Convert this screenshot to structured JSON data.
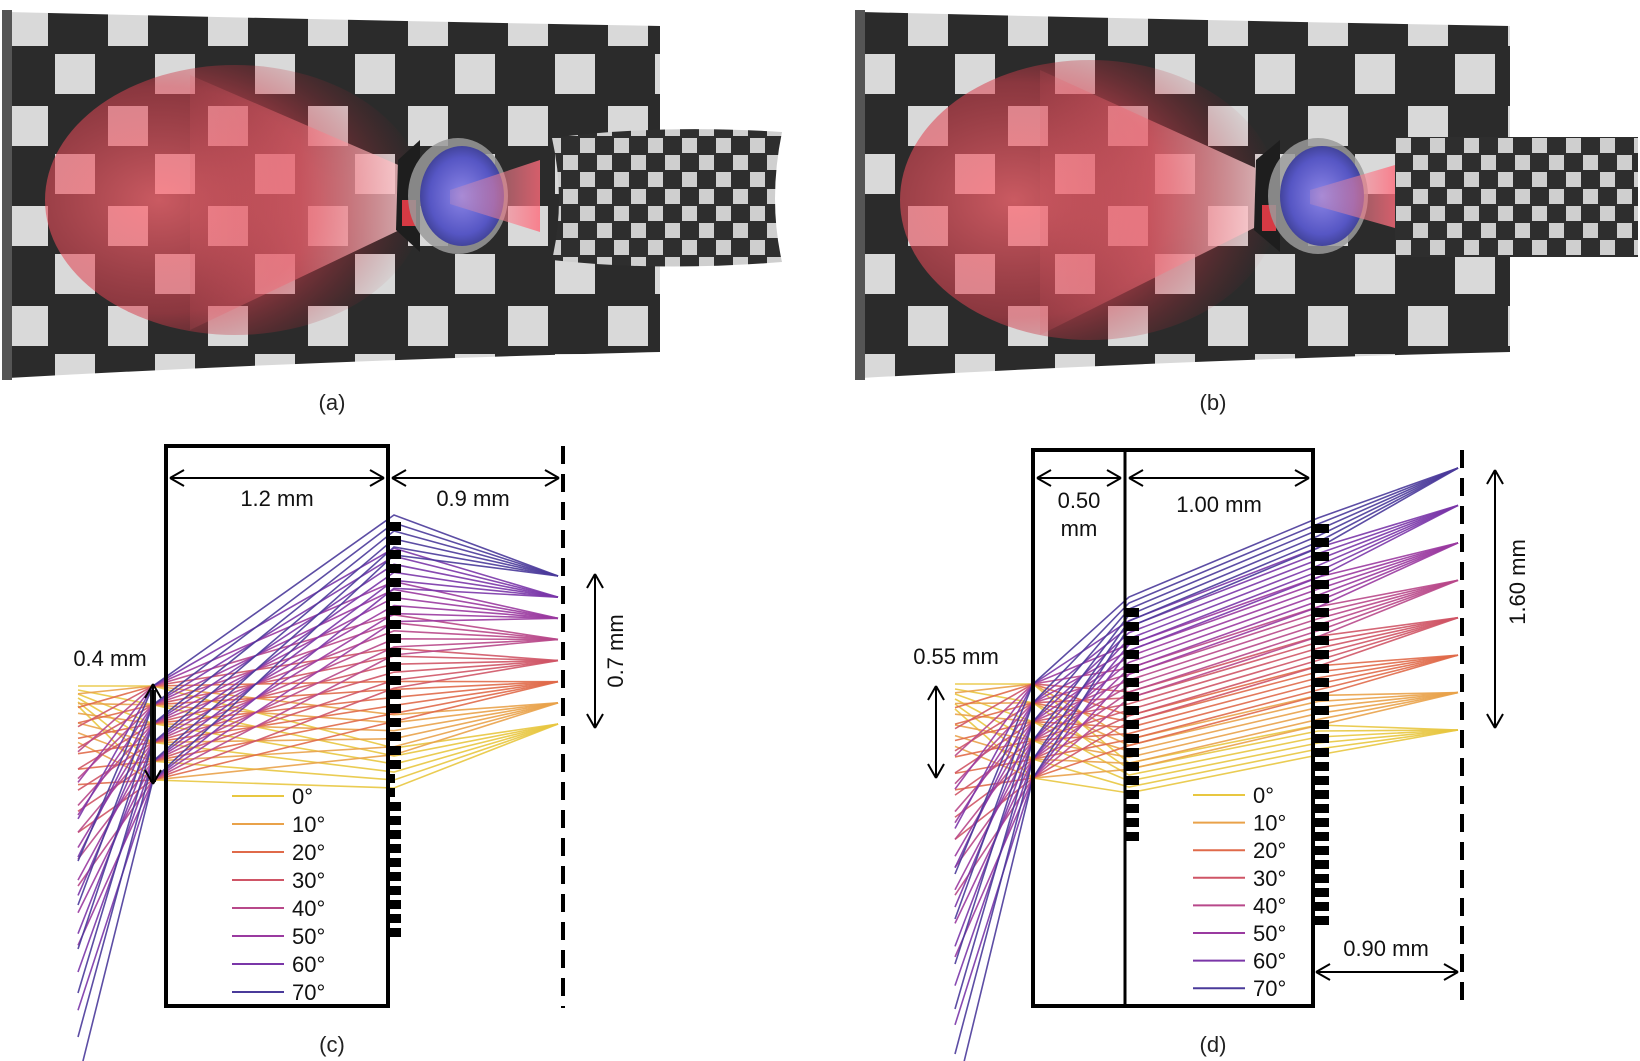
{
  "figure": {
    "panels": [
      {
        "id": "a",
        "caption": "(a)"
      },
      {
        "id": "b",
        "caption": "(b)"
      },
      {
        "id": "c",
        "caption": "(c)"
      },
      {
        "id": "d",
        "caption": "(d)"
      }
    ]
  },
  "panel_c": {
    "dims": {
      "lens_width": "1.2 mm",
      "gap": "0.9 mm",
      "aperture": "0.4 mm",
      "image_height": "0.7 mm"
    }
  },
  "panel_d": {
    "dims": {
      "first_layer": "0.50",
      "first_layer_unit": "mm",
      "second_layer": "1.00 mm",
      "aperture": "0.55 mm",
      "image_height": "1.60 mm",
      "gap": "0.90 mm"
    }
  },
  "legend": {
    "entries": [
      "0°",
      "10°",
      "20°",
      "30°",
      "40°",
      "50°",
      "60°",
      "70°"
    ],
    "colors": [
      "#e8c740",
      "#e9a24a",
      "#e06a4a",
      "#cf5566",
      "#b8488a",
      "#9a3aa0",
      "#7a36a8",
      "#4a3a9a"
    ]
  },
  "colors": {
    "checker_dark": "#2b2b2b",
    "checker_light": "#d8d8d8",
    "beam": "#e0525e",
    "lens_body": "#5a5fc0"
  }
}
